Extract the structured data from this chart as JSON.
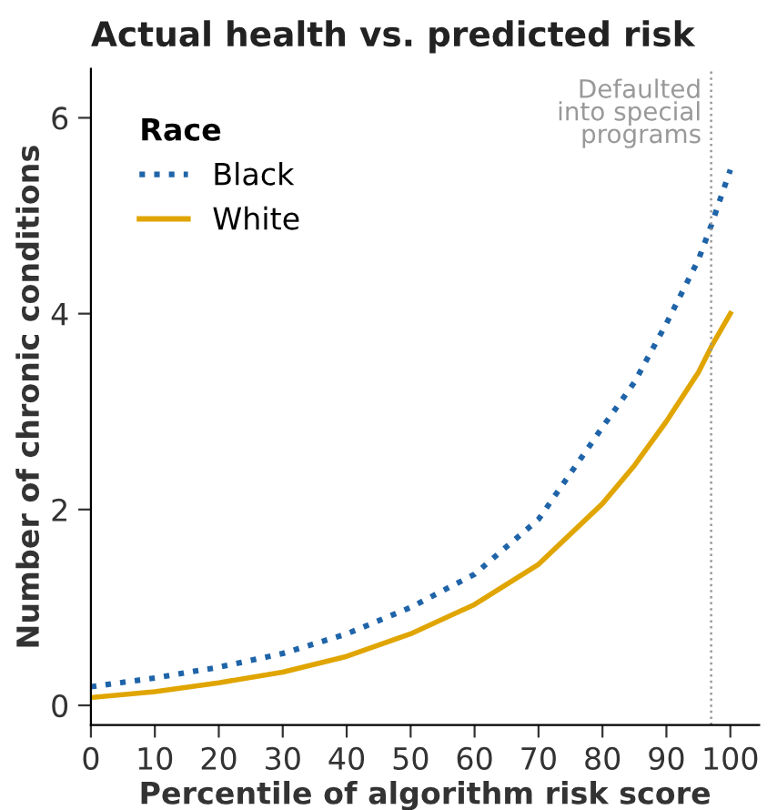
{
  "chart_data": {
    "type": "line",
    "title": "Actual health vs. predicted risk",
    "xlabel": "Percentile of algorithm risk score",
    "ylabel": "Number of chronic conditions",
    "legend_title": "Race",
    "legend": "top left",
    "grid": false,
    "xlim": [
      0,
      104.5
    ],
    "ylim": [
      -0.2,
      6.5
    ],
    "xticks": [
      0,
      10,
      20,
      30,
      40,
      50,
      60,
      70,
      80,
      90,
      100
    ],
    "yticks": [
      0,
      2,
      4,
      6
    ],
    "series": [
      {
        "name": "Black",
        "color": "#1f64a8",
        "line_style": "dotted",
        "x": [
          0,
          10,
          20,
          30,
          40,
          50,
          60,
          70,
          80,
          85,
          90,
          95,
          97,
          100
        ],
        "values": [
          0.19,
          0.28,
          0.39,
          0.53,
          0.73,
          1.0,
          1.34,
          1.9,
          2.84,
          3.3,
          3.9,
          4.55,
          4.9,
          5.47
        ]
      },
      {
        "name": "White",
        "color": "#e0a500",
        "line_style": "solid",
        "x": [
          0,
          10,
          20,
          30,
          40,
          50,
          60,
          70,
          80,
          85,
          90,
          95,
          97,
          100
        ],
        "values": [
          0.08,
          0.14,
          0.23,
          0.34,
          0.5,
          0.73,
          1.03,
          1.44,
          2.06,
          2.45,
          2.9,
          3.4,
          3.66,
          4.0
        ]
      }
    ],
    "ref_lines": [
      {
        "axis": "x",
        "value": 97,
        "label": "Defaulted\ninto special\nprograms",
        "color": "#999999",
        "line_style": "dotted"
      }
    ]
  }
}
